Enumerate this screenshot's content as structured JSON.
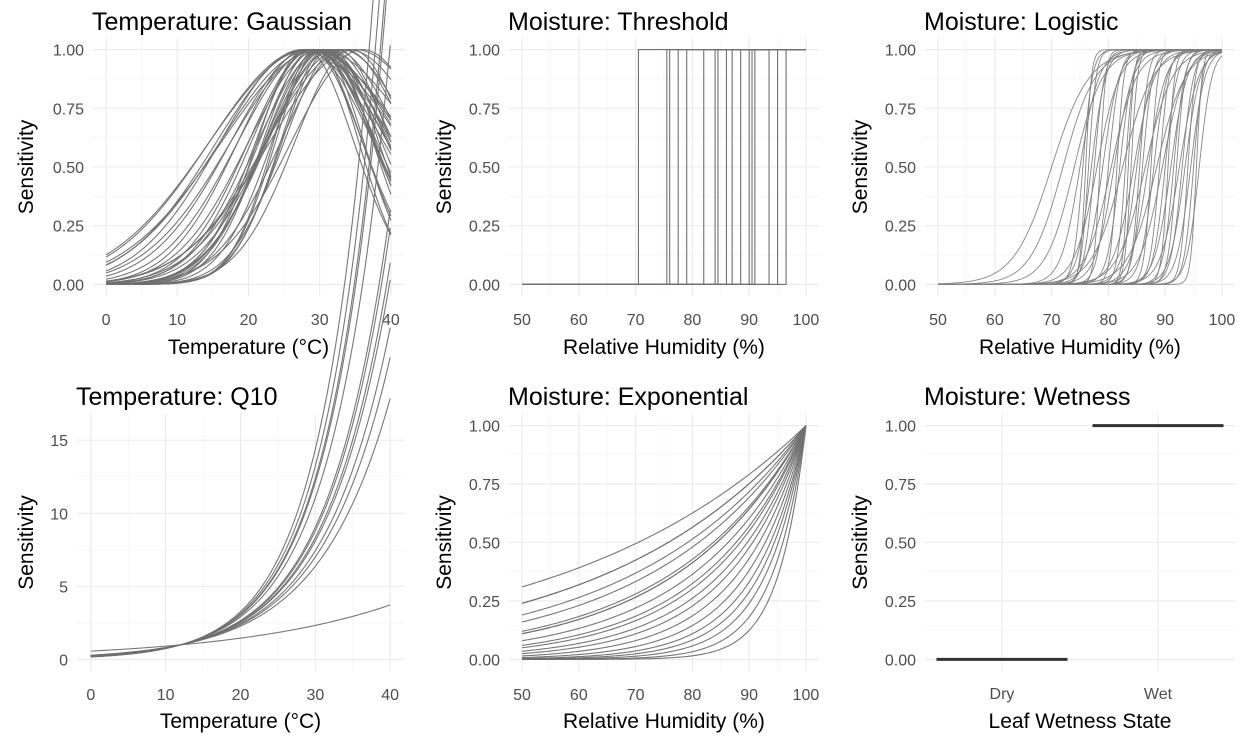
{
  "chart_data": [
    {
      "id": "temp_gaussian",
      "type": "line",
      "title": "Temperature: Gaussian",
      "xlabel": "Temperature (°C)",
      "ylabel": "Sensitivity",
      "xlim": [
        0,
        40
      ],
      "ylim": [
        0,
        1
      ],
      "xticks": [
        0,
        10,
        20,
        30,
        40
      ],
      "yticks": [
        0,
        0.25,
        0.5,
        0.75,
        1
      ],
      "ytick_labels": [
        "0.00",
        "0.25",
        "0.50",
        "0.75",
        "1.00"
      ],
      "grid": true,
      "line_color": "#707070",
      "model": "gaussian",
      "params": [
        {
          "opt": 28.0,
          "sd": 13.5
        },
        {
          "opt": 28.5,
          "sd": 14.0
        },
        {
          "opt": 29.0,
          "sd": 13.0
        },
        {
          "opt": 28.0,
          "sd": 12.5
        },
        {
          "opt": 29.5,
          "sd": 12.0
        },
        {
          "opt": 30.0,
          "sd": 13.8
        },
        {
          "opt": 27.5,
          "sd": 11.5
        },
        {
          "opt": 28.5,
          "sd": 11.0
        },
        {
          "opt": 29.0,
          "sd": 10.5
        },
        {
          "opt": 30.0,
          "sd": 10.0
        },
        {
          "opt": 28.0,
          "sd": 9.5
        },
        {
          "opt": 29.0,
          "sd": 9.0
        },
        {
          "opt": 30.5,
          "sd": 9.2
        },
        {
          "opt": 31.0,
          "sd": 8.5
        },
        {
          "opt": 29.5,
          "sd": 8.0
        },
        {
          "opt": 30.0,
          "sd": 7.8
        },
        {
          "opt": 28.5,
          "sd": 7.5
        },
        {
          "opt": 31.5,
          "sd": 8.8
        },
        {
          "opt": 32.0,
          "sd": 9.5
        },
        {
          "opt": 30.5,
          "sd": 7.2
        },
        {
          "opt": 29.0,
          "sd": 7.0
        },
        {
          "opt": 28.0,
          "sd": 6.8
        },
        {
          "opt": 31.0,
          "sd": 6.5
        },
        {
          "opt": 30.0,
          "sd": 6.2
        },
        {
          "opt": 29.5,
          "sd": 6.0
        },
        {
          "opt": 33.0,
          "sd": 10.5
        },
        {
          "opt": 34.0,
          "sd": 11.5
        },
        {
          "opt": 35.0,
          "sd": 12.0
        },
        {
          "opt": 33.5,
          "sd": 9.0
        },
        {
          "opt": 32.5,
          "sd": 7.5
        },
        {
          "opt": 34.5,
          "sd": 8.0
        },
        {
          "opt": 36.0,
          "sd": 10.0
        },
        {
          "opt": 31.5,
          "sd": 6.8
        },
        {
          "opt": 30.5,
          "sd": 8.2
        },
        {
          "opt": 29.0,
          "sd": 8.6
        }
      ]
    },
    {
      "id": "moist_threshold",
      "type": "line",
      "title": "Moisture: Threshold",
      "xlabel": "Relative Humidity (%)",
      "ylabel": "Sensitivity",
      "xlim": [
        50,
        100
      ],
      "ylim": [
        0,
        1
      ],
      "xticks": [
        50,
        60,
        70,
        80,
        90,
        100
      ],
      "yticks": [
        0,
        0.25,
        0.5,
        0.75,
        1
      ],
      "ytick_labels": [
        "0.00",
        "0.25",
        "0.50",
        "0.75",
        "1.00"
      ],
      "grid": true,
      "line_color": "#707070",
      "model": "threshold",
      "thresholds": [
        70.5,
        75.5,
        76.0,
        77.5,
        79.0,
        82.0,
        84.0,
        84.5,
        86.0,
        87.0,
        88.5,
        90.0,
        90.5,
        91.0,
        93.5,
        95.0,
        96.5
      ]
    },
    {
      "id": "moist_logistic",
      "type": "line",
      "title": "Moisture: Logistic",
      "xlabel": "Relative Humidity (%)",
      "ylabel": "Sensitivity",
      "xlim": [
        50,
        100
      ],
      "ylim": [
        0,
        1
      ],
      "xticks": [
        50,
        60,
        70,
        80,
        90,
        100
      ],
      "yticks": [
        0,
        0.25,
        0.5,
        0.75,
        1
      ],
      "ytick_labels": [
        "0.00",
        "0.25",
        "0.50",
        "0.75",
        "1.00"
      ],
      "grid": true,
      "line_color": "#808080",
      "model": "logistic",
      "params": [
        {
          "mid": 70.0,
          "k": 0.3
        },
        {
          "mid": 72.0,
          "k": 0.35
        },
        {
          "mid": 74.0,
          "k": 0.4
        },
        {
          "mid": 75.0,
          "k": 0.6
        },
        {
          "mid": 75.5,
          "k": 1.2
        },
        {
          "mid": 76.0,
          "k": 2.0
        },
        {
          "mid": 76.5,
          "k": 1.5
        },
        {
          "mid": 77.0,
          "k": 0.8
        },
        {
          "mid": 78.0,
          "k": 0.5
        },
        {
          "mid": 79.0,
          "k": 0.7
        },
        {
          "mid": 80.0,
          "k": 1.0
        },
        {
          "mid": 80.5,
          "k": 0.45
        },
        {
          "mid": 81.0,
          "k": 0.6
        },
        {
          "mid": 82.0,
          "k": 0.9
        },
        {
          "mid": 83.0,
          "k": 1.4
        },
        {
          "mid": 83.5,
          "k": 2.0
        },
        {
          "mid": 84.0,
          "k": 1.8
        },
        {
          "mid": 84.5,
          "k": 0.55
        },
        {
          "mid": 85.0,
          "k": 0.75
        },
        {
          "mid": 86.0,
          "k": 1.1
        },
        {
          "mid": 87.0,
          "k": 0.65
        },
        {
          "mid": 87.5,
          "k": 1.6
        },
        {
          "mid": 88.0,
          "k": 0.85
        },
        {
          "mid": 89.0,
          "k": 1.2
        },
        {
          "mid": 89.5,
          "k": 0.5
        },
        {
          "mid": 90.0,
          "k": 0.95
        },
        {
          "mid": 90.5,
          "k": 1.7
        },
        {
          "mid": 91.0,
          "k": 0.7
        },
        {
          "mid": 92.0,
          "k": 1.3
        },
        {
          "mid": 92.5,
          "k": 0.6
        },
        {
          "mid": 93.0,
          "k": 1.0
        },
        {
          "mid": 94.0,
          "k": 1.5
        },
        {
          "mid": 94.5,
          "k": 0.8
        },
        {
          "mid": 95.0,
          "k": 1.2
        },
        {
          "mid": 95.5,
          "k": 2.0
        },
        {
          "mid": 96.0,
          "k": 0.9
        },
        {
          "mid": 78.5,
          "k": 1.9
        },
        {
          "mid": 81.5,
          "k": 1.6
        },
        {
          "mid": 85.5,
          "k": 1.35
        },
        {
          "mid": 88.5,
          "k": 0.4
        },
        {
          "mid": 91.5,
          "k": 1.05
        },
        {
          "mid": 93.5,
          "k": 0.75
        },
        {
          "mid": 82.5,
          "k": 0.38
        },
        {
          "mid": 86.5,
          "k": 0.42
        },
        {
          "mid": 77.5,
          "k": 1.1
        }
      ]
    },
    {
      "id": "temp_q10",
      "type": "line",
      "title": "Temperature: Q10",
      "xlabel": "Temperature (°C)",
      "ylabel": "Sensitivity",
      "xlim": [
        0,
        40
      ],
      "ylim": [
        0,
        16
      ],
      "xticks": [
        0,
        10,
        20,
        30,
        40
      ],
      "yticks": [
        0,
        5,
        10,
        15
      ],
      "ytick_labels": [
        "0",
        "5",
        "10",
        "15"
      ],
      "grid": true,
      "line_color": "#707070",
      "model": "q10",
      "ref_temp": 12,
      "q10_values": [
        1.6,
        2.8,
        2.95,
        3.05,
        3.2,
        3.25,
        3.35,
        3.4,
        3.8,
        4.0,
        4.05,
        4.2,
        4.4
      ]
    },
    {
      "id": "moist_exponential",
      "type": "line",
      "title": "Moisture: Exponential",
      "xlabel": "Relative Humidity (%)",
      "ylabel": "Sensitivity",
      "xlim": [
        50,
        100
      ],
      "ylim": [
        0,
        1
      ],
      "xticks": [
        50,
        60,
        70,
        80,
        90,
        100
      ],
      "yticks": [
        0,
        0.25,
        0.5,
        0.75,
        1
      ],
      "ytick_labels": [
        "0.00",
        "0.25",
        "0.50",
        "0.75",
        "1.00"
      ],
      "grid": true,
      "line_color": "#707070",
      "model": "exponential",
      "values_at_50": [
        0.31,
        0.24,
        0.24,
        0.19,
        0.16,
        0.12,
        0.11,
        0.11,
        0.08,
        0.06,
        0.05,
        0.035,
        0.025,
        0.015,
        0.008,
        0.004,
        0.002,
        0.0008,
        0.0002,
        3e-05
      ]
    },
    {
      "id": "moist_wetness",
      "type": "line",
      "title": "Moisture: Wetness",
      "xlabel": "Leaf Wetness State",
      "ylabel": "Sensitivity",
      "categories": [
        "Dry",
        "Wet"
      ],
      "values": [
        0,
        1
      ],
      "ylim": [
        0,
        1
      ],
      "yticks": [
        0,
        0.25,
        0.5,
        0.75,
        1
      ],
      "ytick_labels": [
        "0.00",
        "0.25",
        "0.50",
        "0.75",
        "1.00"
      ],
      "grid": true,
      "line_color": "#333333"
    }
  ]
}
